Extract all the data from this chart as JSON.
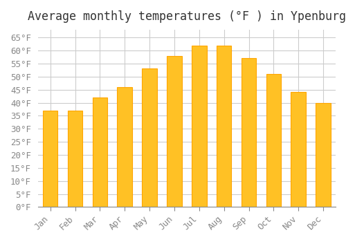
{
  "title": "Average monthly temperatures (°F ) in Ypenburg",
  "months": [
    "Jan",
    "Feb",
    "Mar",
    "Apr",
    "May",
    "Jun",
    "Jul",
    "Aug",
    "Sep",
    "Oct",
    "Nov",
    "Dec"
  ],
  "values": [
    37,
    37,
    42,
    46,
    53,
    58,
    62,
    62,
    57,
    51,
    44,
    40
  ],
  "bar_color": "#FFC125",
  "bar_edge_color": "#FFA500",
  "background_color": "#FFFFFF",
  "grid_color": "#CCCCCC",
  "ylim": [
    0,
    68
  ],
  "yticks": [
    0,
    5,
    10,
    15,
    20,
    25,
    30,
    35,
    40,
    45,
    50,
    55,
    60,
    65
  ],
  "title_fontsize": 12,
  "tick_fontsize": 9,
  "title_font": "monospace",
  "tick_font": "monospace"
}
